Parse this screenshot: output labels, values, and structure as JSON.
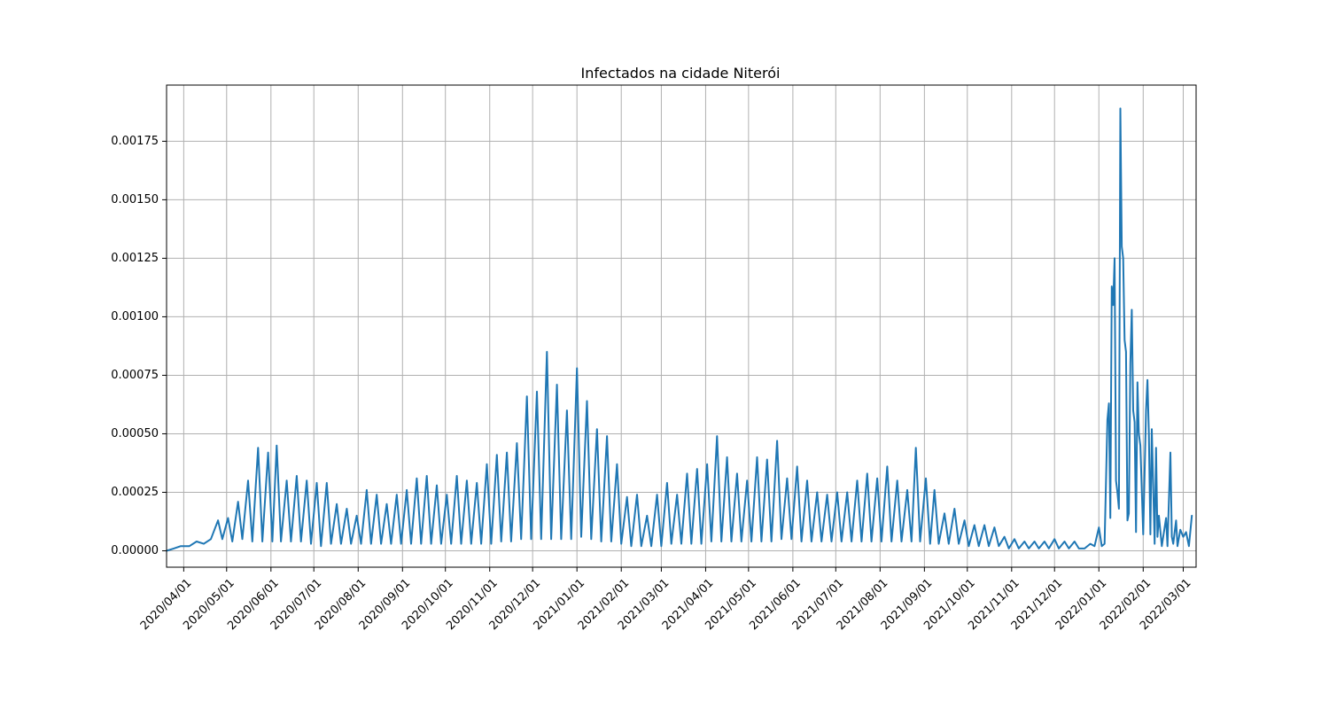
{
  "chart_data": {
    "type": "line",
    "title": "Infectados na cidade Niterói",
    "xlabel": "",
    "ylabel": "",
    "x_start": "2020-03-20",
    "x_end": "2022-03-10",
    "ylim": [
      -7e-05,
      0.00199
    ],
    "grid": true,
    "x_ticks": [
      "2020/04/01",
      "2020/05/01",
      "2020/06/01",
      "2020/07/01",
      "2020/08/01",
      "2020/09/01",
      "2020/10/01",
      "2020/11/01",
      "2020/12/01",
      "2021/01/01",
      "2021/02/01",
      "2021/03/01",
      "2021/04/01",
      "2021/05/01",
      "2021/06/01",
      "2021/07/01",
      "2021/08/01",
      "2021/09/01",
      "2021/10/01",
      "2021/11/01",
      "2021/12/01",
      "2022/01/01",
      "2022/02/01",
      "2022/03/01"
    ],
    "y_ticks": [
      "0.00000",
      "0.00025",
      "0.00050",
      "0.00075",
      "0.00100",
      "0.00125",
      "0.00150",
      "0.00175"
    ],
    "series": [
      {
        "name": "",
        "color": "#1f77b4",
        "points": [
          [
            "2020-03-20",
            0.0
          ],
          [
            "2020-03-25",
            1e-05
          ],
          [
            "2020-03-30",
            2e-05
          ],
          [
            "2020-04-05",
            2e-05
          ],
          [
            "2020-04-10",
            4e-05
          ],
          [
            "2020-04-15",
            3e-05
          ],
          [
            "2020-04-20",
            5e-05
          ],
          [
            "2020-04-25",
            0.00013
          ],
          [
            "2020-04-28",
            5e-05
          ],
          [
            "2020-05-02",
            0.00014
          ],
          [
            "2020-05-05",
            4e-05
          ],
          [
            "2020-05-09",
            0.00021
          ],
          [
            "2020-05-12",
            5e-05
          ],
          [
            "2020-05-16",
            0.0003
          ],
          [
            "2020-05-19",
            4e-05
          ],
          [
            "2020-05-23",
            0.00044
          ],
          [
            "2020-05-26",
            4e-05
          ],
          [
            "2020-05-30",
            0.00042
          ],
          [
            "2020-06-02",
            4e-05
          ],
          [
            "2020-06-05",
            0.00045
          ],
          [
            "2020-06-08",
            4e-05
          ],
          [
            "2020-06-12",
            0.0003
          ],
          [
            "2020-06-15",
            4e-05
          ],
          [
            "2020-06-19",
            0.00032
          ],
          [
            "2020-06-22",
            4e-05
          ],
          [
            "2020-06-26",
            0.0003
          ],
          [
            "2020-06-29",
            3e-05
          ],
          [
            "2020-07-03",
            0.00029
          ],
          [
            "2020-07-06",
            2e-05
          ],
          [
            "2020-07-10",
            0.00029
          ],
          [
            "2020-07-13",
            3e-05
          ],
          [
            "2020-07-17",
            0.0002
          ],
          [
            "2020-07-20",
            3e-05
          ],
          [
            "2020-07-24",
            0.00018
          ],
          [
            "2020-07-27",
            3e-05
          ],
          [
            "2020-07-31",
            0.00015
          ],
          [
            "2020-08-03",
            3e-05
          ],
          [
            "2020-08-07",
            0.00026
          ],
          [
            "2020-08-10",
            3e-05
          ],
          [
            "2020-08-14",
            0.00024
          ],
          [
            "2020-08-17",
            3e-05
          ],
          [
            "2020-08-21",
            0.0002
          ],
          [
            "2020-08-24",
            3e-05
          ],
          [
            "2020-08-28",
            0.00024
          ],
          [
            "2020-08-31",
            3e-05
          ],
          [
            "2020-09-04",
            0.00026
          ],
          [
            "2020-09-07",
            3e-05
          ],
          [
            "2020-09-11",
            0.00031
          ],
          [
            "2020-09-14",
            3e-05
          ],
          [
            "2020-09-18",
            0.00032
          ],
          [
            "2020-09-21",
            3e-05
          ],
          [
            "2020-09-25",
            0.00028
          ],
          [
            "2020-09-28",
            3e-05
          ],
          [
            "2020-10-02",
            0.00024
          ],
          [
            "2020-10-05",
            3e-05
          ],
          [
            "2020-10-09",
            0.00032
          ],
          [
            "2020-10-12",
            3e-05
          ],
          [
            "2020-10-16",
            0.0003
          ],
          [
            "2020-10-19",
            3e-05
          ],
          [
            "2020-10-23",
            0.00029
          ],
          [
            "2020-10-26",
            3e-05
          ],
          [
            "2020-10-30",
            0.00037
          ],
          [
            "2020-11-02",
            3e-05
          ],
          [
            "2020-11-06",
            0.00041
          ],
          [
            "2020-11-09",
            4e-05
          ],
          [
            "2020-11-13",
            0.00042
          ],
          [
            "2020-11-16",
            4e-05
          ],
          [
            "2020-11-20",
            0.00046
          ],
          [
            "2020-11-23",
            5e-05
          ],
          [
            "2020-11-27",
            0.00066
          ],
          [
            "2020-11-30",
            5e-05
          ],
          [
            "2020-12-04",
            0.00068
          ],
          [
            "2020-12-07",
            5e-05
          ],
          [
            "2020-12-11",
            0.00085
          ],
          [
            "2020-12-14",
            5e-05
          ],
          [
            "2020-12-18",
            0.00071
          ],
          [
            "2020-12-21",
            5e-05
          ],
          [
            "2020-12-25",
            0.0006
          ],
          [
            "2020-12-28",
            5e-05
          ],
          [
            "2021-01-01",
            0.00078
          ],
          [
            "2021-01-04",
            6e-05
          ],
          [
            "2021-01-08",
            0.00064
          ],
          [
            "2021-01-11",
            5e-05
          ],
          [
            "2021-01-15",
            0.00052
          ],
          [
            "2021-01-18",
            4e-05
          ],
          [
            "2021-01-22",
            0.00049
          ],
          [
            "2021-01-25",
            4e-05
          ],
          [
            "2021-01-29",
            0.00037
          ],
          [
            "2021-02-01",
            3e-05
          ],
          [
            "2021-02-05",
            0.00023
          ],
          [
            "2021-02-08",
            2e-05
          ],
          [
            "2021-02-12",
            0.00024
          ],
          [
            "2021-02-15",
            2e-05
          ],
          [
            "2021-02-19",
            0.00015
          ],
          [
            "2021-02-22",
            2e-05
          ],
          [
            "2021-02-26",
            0.00024
          ],
          [
            "2021-03-01",
            2e-05
          ],
          [
            "2021-03-05",
            0.00029
          ],
          [
            "2021-03-08",
            3e-05
          ],
          [
            "2021-03-12",
            0.00024
          ],
          [
            "2021-03-15",
            3e-05
          ],
          [
            "2021-03-19",
            0.00033
          ],
          [
            "2021-03-22",
            3e-05
          ],
          [
            "2021-03-26",
            0.00035
          ],
          [
            "2021-03-29",
            3e-05
          ],
          [
            "2021-04-02",
            0.00037
          ],
          [
            "2021-04-05",
            4e-05
          ],
          [
            "2021-04-09",
            0.00049
          ],
          [
            "2021-04-12",
            4e-05
          ],
          [
            "2021-04-16",
            0.0004
          ],
          [
            "2021-04-19",
            4e-05
          ],
          [
            "2021-04-23",
            0.00033
          ],
          [
            "2021-04-26",
            4e-05
          ],
          [
            "2021-04-30",
            0.0003
          ],
          [
            "2021-05-03",
            4e-05
          ],
          [
            "2021-05-07",
            0.0004
          ],
          [
            "2021-05-10",
            4e-05
          ],
          [
            "2021-05-14",
            0.00039
          ],
          [
            "2021-05-17",
            4e-05
          ],
          [
            "2021-05-21",
            0.00047
          ],
          [
            "2021-05-24",
            5e-05
          ],
          [
            "2021-05-28",
            0.00031
          ],
          [
            "2021-05-31",
            5e-05
          ],
          [
            "2021-06-04",
            0.00036
          ],
          [
            "2021-06-07",
            4e-05
          ],
          [
            "2021-06-11",
            0.0003
          ],
          [
            "2021-06-14",
            4e-05
          ],
          [
            "2021-06-18",
            0.00025
          ],
          [
            "2021-06-21",
            4e-05
          ],
          [
            "2021-06-25",
            0.00024
          ],
          [
            "2021-06-28",
            4e-05
          ],
          [
            "2021-07-02",
            0.00025
          ],
          [
            "2021-07-05",
            4e-05
          ],
          [
            "2021-07-09",
            0.00025
          ],
          [
            "2021-07-12",
            4e-05
          ],
          [
            "2021-07-16",
            0.0003
          ],
          [
            "2021-07-19",
            4e-05
          ],
          [
            "2021-07-23",
            0.00033
          ],
          [
            "2021-07-26",
            4e-05
          ],
          [
            "2021-07-30",
            0.00031
          ],
          [
            "2021-08-02",
            4e-05
          ],
          [
            "2021-08-06",
            0.00036
          ],
          [
            "2021-08-09",
            4e-05
          ],
          [
            "2021-08-13",
            0.0003
          ],
          [
            "2021-08-16",
            4e-05
          ],
          [
            "2021-08-20",
            0.00026
          ],
          [
            "2021-08-23",
            4e-05
          ],
          [
            "2021-08-26",
            0.00044
          ],
          [
            "2021-08-29",
            4e-05
          ],
          [
            "2021-09-02",
            0.00031
          ],
          [
            "2021-09-05",
            3e-05
          ],
          [
            "2021-09-08",
            0.00026
          ],
          [
            "2021-09-11",
            3e-05
          ],
          [
            "2021-09-15",
            0.00016
          ],
          [
            "2021-09-18",
            3e-05
          ],
          [
            "2021-09-22",
            0.00018
          ],
          [
            "2021-09-25",
            3e-05
          ],
          [
            "2021-09-29",
            0.00013
          ],
          [
            "2021-10-02",
            2e-05
          ],
          [
            "2021-10-06",
            0.00011
          ],
          [
            "2021-10-09",
            2e-05
          ],
          [
            "2021-10-13",
            0.00011
          ],
          [
            "2021-10-16",
            2e-05
          ],
          [
            "2021-10-20",
            0.0001
          ],
          [
            "2021-10-23",
            2e-05
          ],
          [
            "2021-10-27",
            6e-05
          ],
          [
            "2021-10-30",
            1e-05
          ],
          [
            "2021-11-03",
            5e-05
          ],
          [
            "2021-11-06",
            1e-05
          ],
          [
            "2021-11-10",
            4e-05
          ],
          [
            "2021-11-13",
            1e-05
          ],
          [
            "2021-11-17",
            4e-05
          ],
          [
            "2021-11-20",
            1e-05
          ],
          [
            "2021-11-24",
            4e-05
          ],
          [
            "2021-11-27",
            1e-05
          ],
          [
            "2021-12-01",
            5e-05
          ],
          [
            "2021-12-04",
            1e-05
          ],
          [
            "2021-12-08",
            4e-05
          ],
          [
            "2021-12-11",
            1e-05
          ],
          [
            "2021-12-15",
            4e-05
          ],
          [
            "2021-12-18",
            1e-05
          ],
          [
            "2021-12-22",
            1e-05
          ],
          [
            "2021-12-26",
            3e-05
          ],
          [
            "2021-12-29",
            2e-05
          ],
          [
            "2022-01-01",
            0.0001
          ],
          [
            "2022-01-03",
            2e-05
          ],
          [
            "2022-01-05",
            3e-05
          ],
          [
            "2022-01-07",
            0.00056
          ],
          [
            "2022-01-08",
            0.00063
          ],
          [
            "2022-01-09",
            0.00014
          ],
          [
            "2022-01-10",
            0.00113
          ],
          [
            "2022-01-11",
            0.00105
          ],
          [
            "2022-01-12",
            0.00125
          ],
          [
            "2022-01-13",
            0.0003
          ],
          [
            "2022-01-14",
            0.00025
          ],
          [
            "2022-01-15",
            0.00018
          ],
          [
            "2022-01-16",
            0.00189
          ],
          [
            "2022-01-17",
            0.0013
          ],
          [
            "2022-01-18",
            0.00125
          ],
          [
            "2022-01-19",
            0.0009
          ],
          [
            "2022-01-20",
            0.00085
          ],
          [
            "2022-01-21",
            0.00013
          ],
          [
            "2022-01-22",
            0.00016
          ],
          [
            "2022-01-23",
            0.0008
          ],
          [
            "2022-01-24",
            0.00103
          ],
          [
            "2022-01-25",
            0.0006
          ],
          [
            "2022-01-26",
            0.00055
          ],
          [
            "2022-01-27",
            8e-05
          ],
          [
            "2022-01-28",
            0.00072
          ],
          [
            "2022-01-29",
            0.0005
          ],
          [
            "2022-01-30",
            0.00045
          ],
          [
            "2022-02-01",
            7e-05
          ],
          [
            "2022-02-03",
            0.0006
          ],
          [
            "2022-02-04",
            0.00073
          ],
          [
            "2022-02-05",
            0.0005
          ],
          [
            "2022-02-06",
            7e-05
          ],
          [
            "2022-02-07",
            0.00052
          ],
          [
            "2022-02-09",
            3e-05
          ],
          [
            "2022-02-10",
            0.00044
          ],
          [
            "2022-02-11",
            6e-05
          ],
          [
            "2022-02-12",
            0.00015
          ],
          [
            "2022-02-14",
            2e-05
          ],
          [
            "2022-02-17",
            0.00014
          ],
          [
            "2022-02-18",
            2e-05
          ],
          [
            "2022-02-20",
            0.00042
          ],
          [
            "2022-02-21",
            6e-05
          ],
          [
            "2022-02-22",
            3e-05
          ],
          [
            "2022-02-24",
            0.00013
          ],
          [
            "2022-02-25",
            2e-05
          ],
          [
            "2022-02-27",
            9e-05
          ],
          [
            "2022-03-01",
            6e-05
          ],
          [
            "2022-03-03",
            8e-05
          ],
          [
            "2022-03-05",
            2e-05
          ],
          [
            "2022-03-07",
            0.00015
          ]
        ]
      }
    ]
  }
}
